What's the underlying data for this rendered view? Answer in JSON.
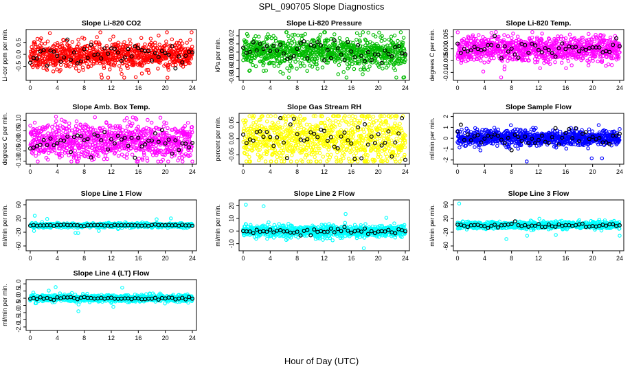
{
  "figure": {
    "title": "SPL_090705 Slope Diagnostics",
    "xlabel": "Hour of Day (UTC)"
  },
  "chart_data": [
    {
      "type": "scatter",
      "title": "Slope Li-820 CO2",
      "ylabel": "Li-cor ppm per min.",
      "xlim": [
        0,
        24
      ],
      "ylim": [
        -1.0,
        0.95
      ],
      "yticks": [
        -0.5,
        0.0,
        0.5
      ],
      "ytick_labels": [
        "-0.5",
        "0.0",
        "0.5"
      ],
      "color": "#ff0000",
      "spread": 0.28,
      "hourly_black": 0.22,
      "seed": 11
    },
    {
      "type": "scatter",
      "title": "Slope Li-820 Pressure",
      "ylabel": "kPa per min.",
      "xlim": [
        0,
        24
      ],
      "ylim": [
        -0.032,
        0.025
      ],
      "yticks": [
        -0.03,
        -0.02,
        -0.01,
        0.0,
        0.01,
        0.02
      ],
      "ytick_labels": [
        "-0.03",
        "-0.02",
        "-0.01",
        "0.00",
        "0.01",
        "0.02"
      ],
      "color": "#00bb00",
      "spread": 0.009,
      "hourly_black": 0.006,
      "seed": 23
    },
    {
      "type": "scatter",
      "title": "Slope Li-820 Temp.",
      "ylabel": "degrees C per min.",
      "xlim": [
        0,
        24
      ],
      "ylim": [
        -0.0125,
        0.0072
      ],
      "yticks": [
        -0.01,
        -0.005,
        0.0,
        0.005
      ],
      "ytick_labels": [
        "-0.010",
        "-0.005",
        "0.000",
        "0.005"
      ],
      "color": "#ff00ff",
      "spread": 0.0028,
      "hourly_black": 0.0015,
      "seed": 37
    },
    {
      "type": "scatter",
      "title": "Slope Amb. Box Temp.",
      "ylabel": "degrees C per min.",
      "xlim": [
        0,
        24
      ],
      "ylim": [
        -0.105,
        0.125
      ],
      "yticks": [
        -0.1,
        -0.05,
        0.0,
        0.05,
        0.1
      ],
      "ytick_labels": [
        "-0.10",
        "-0.05",
        "0.00",
        "0.05",
        "0.10"
      ],
      "color": "#ff00ff",
      "spread": 0.045,
      "hourly_black": 0.03,
      "seed": 41
    },
    {
      "type": "scatter",
      "title": "Slope Gas Stream RH",
      "ylabel": "percent per min.",
      "xlim": [
        0,
        24
      ],
      "ylim": [
        -0.073,
        0.072
      ],
      "yticks": [
        -0.05,
        0.0,
        0.05
      ],
      "ytick_labels": [
        "-0.05",
        "0.00",
        "0.05"
      ],
      "color": "#ffff00",
      "spread": 0.04,
      "hourly_black": 0.03,
      "seed": 53
    },
    {
      "type": "scatter",
      "title": "Slope Sample Flow",
      "ylabel": "ml/min per min.",
      "xlim": [
        0,
        24
      ],
      "ylim": [
        -2.2,
        2.1
      ],
      "yticks": [
        -2,
        -1,
        0,
        1,
        2
      ],
      "ytick_labels": [
        "-2",
        "-1",
        "0",
        "1",
        "2"
      ],
      "color": "#0000ff",
      "spread": 0.35,
      "hourly_black": 0.55,
      "seed": 67
    },
    {
      "type": "scatter",
      "title": "Slope Line 1 Flow",
      "ylabel": "ml/min per min.",
      "xlim": [
        0,
        24
      ],
      "ylim": [
        -68,
        68
      ],
      "yticks": [
        -60,
        -20,
        20,
        60
      ],
      "ytick_labels": [
        "-60",
        "-20",
        "20",
        "60"
      ],
      "color": "#00ffff",
      "spread": 3.0,
      "hourly_black": 1.0,
      "seed": 71
    },
    {
      "type": "scatter",
      "title": "Slope Line 2 Flow",
      "ylabel": "ml/min per min.",
      "xlim": [
        0,
        24
      ],
      "ylim": [
        -14,
        23
      ],
      "yticks": [
        -10,
        0,
        10,
        20
      ],
      "ytick_labels": [
        "-10",
        "0",
        "10",
        "20"
      ],
      "color": "#00ffff",
      "spread": 2.2,
      "hourly_black": 1.5,
      "seed": 83
    },
    {
      "type": "scatter",
      "title": "Slope Line 3 Flow",
      "ylabel": "ml/min per min.",
      "xlim": [
        0,
        24
      ],
      "ylim": [
        -68,
        68
      ],
      "yticks": [
        -60,
        -20,
        20,
        60
      ],
      "ytick_labels": [
        "-60",
        "-20",
        "20",
        "60"
      ],
      "color": "#00ffff",
      "spread": 5.0,
      "hourly_black": 3.0,
      "seed": 97
    },
    {
      "type": "scatter",
      "title": "Slope Line 4 (LT) Flow",
      "ylabel": "ml/min per min.",
      "xlim": [
        0,
        24
      ],
      "ylim": [
        -2.1,
        1.15
      ],
      "yticks": [
        -2.0,
        -1.5,
        -1.0,
        -0.5,
        0.0,
        0.5,
        1.0
      ],
      "ytick_labels": [
        "-2.0",
        "-1.5",
        "-1.0",
        "-0.5",
        "0.0",
        "0.5",
        "1.0"
      ],
      "color": "#00ffff",
      "spread": 0.11,
      "hourly_black": 0.06,
      "seed": 101
    }
  ],
  "xticks": [
    0,
    4,
    8,
    12,
    16,
    20,
    24
  ],
  "xtick_labels": [
    "0",
    "4",
    "8",
    "12",
    "16",
    "20",
    "24"
  ]
}
